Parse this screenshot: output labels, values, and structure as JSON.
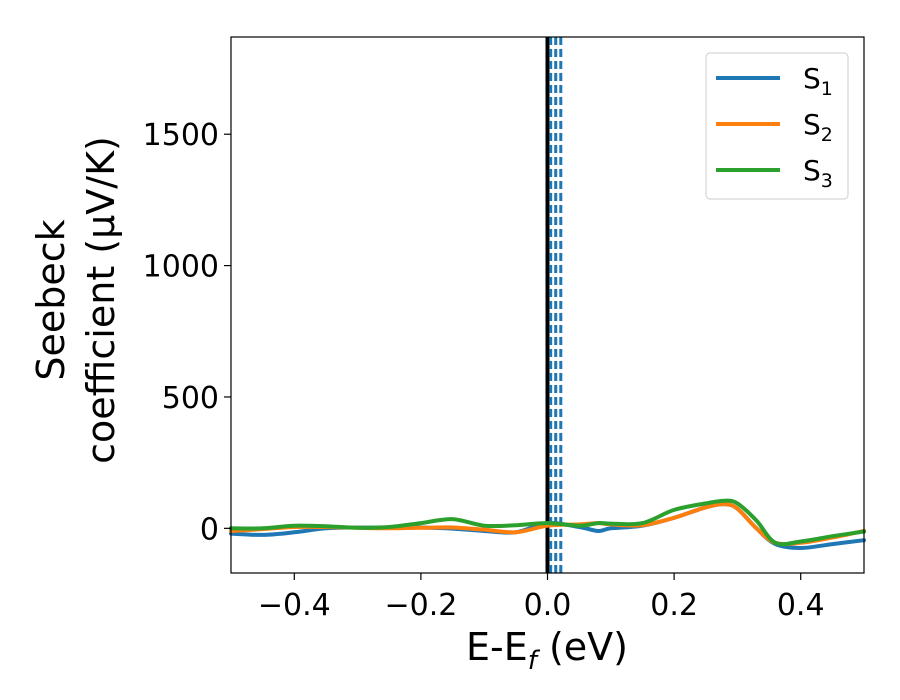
{
  "chart_data": {
    "type": "line",
    "xlabel": {
      "main": "E-E",
      "sub": "f",
      "unit": " (eV)"
    },
    "ylabel": {
      "line1": "Seebeck",
      "line2": "coefficient  (μV/K)"
    },
    "xlim": [
      -0.5,
      0.5
    ],
    "ylim": [
      -170,
      1870
    ],
    "xticks": [
      -0.4,
      -0.2,
      0.0,
      0.2,
      0.4
    ],
    "xtick_labels": [
      "−0.4",
      "−0.2",
      "0.0",
      "0.2",
      "0.4"
    ],
    "yticks": [
      0,
      500,
      1000,
      1500
    ],
    "ytick_labels": [
      "0",
      "500",
      "1000",
      "1500"
    ],
    "legend_position": "top-right",
    "reference_lines": [
      {
        "x": 0.0,
        "style": "solid",
        "color": "#000000"
      },
      {
        "x": 0.005,
        "style": "dashed",
        "color": "#1f77b4"
      },
      {
        "x": 0.013,
        "style": "dashed",
        "color": "#1f77b4"
      },
      {
        "x": 0.021,
        "style": "dashed",
        "color": "#1f77b4"
      }
    ],
    "x": [
      -0.5,
      -0.45,
      -0.4,
      -0.35,
      -0.3,
      -0.25,
      -0.2,
      -0.15,
      -0.1,
      -0.05,
      0.0,
      0.05,
      0.08,
      0.1,
      0.15,
      0.2,
      0.25,
      0.28,
      0.3,
      0.33,
      0.36,
      0.4,
      0.45,
      0.5
    ],
    "series": [
      {
        "name": "S",
        "sub": "1",
        "color": "#1f77b4",
        "values": [
          -20,
          -25,
          -15,
          0,
          3,
          2,
          3,
          -1,
          -10,
          -15,
          20,
          5,
          -10,
          0,
          10,
          40,
          80,
          92,
          75,
          0,
          -60,
          -75,
          -60,
          -45
        ]
      },
      {
        "name": "S",
        "sub": "2",
        "color": "#ff7f0e",
        "values": [
          -10,
          -3,
          5,
          5,
          2,
          0,
          2,
          3,
          -5,
          -15,
          10,
          15,
          20,
          15,
          12,
          40,
          80,
          92,
          75,
          0,
          -55,
          -55,
          -35,
          -10
        ]
      },
      {
        "name": "S",
        "sub": "3",
        "color": "#2ca02c",
        "values": [
          0,
          0,
          10,
          8,
          2,
          5,
          20,
          35,
          10,
          12,
          20,
          10,
          20,
          18,
          20,
          70,
          95,
          105,
          95,
          30,
          -55,
          -50,
          -30,
          -12
        ]
      }
    ]
  }
}
